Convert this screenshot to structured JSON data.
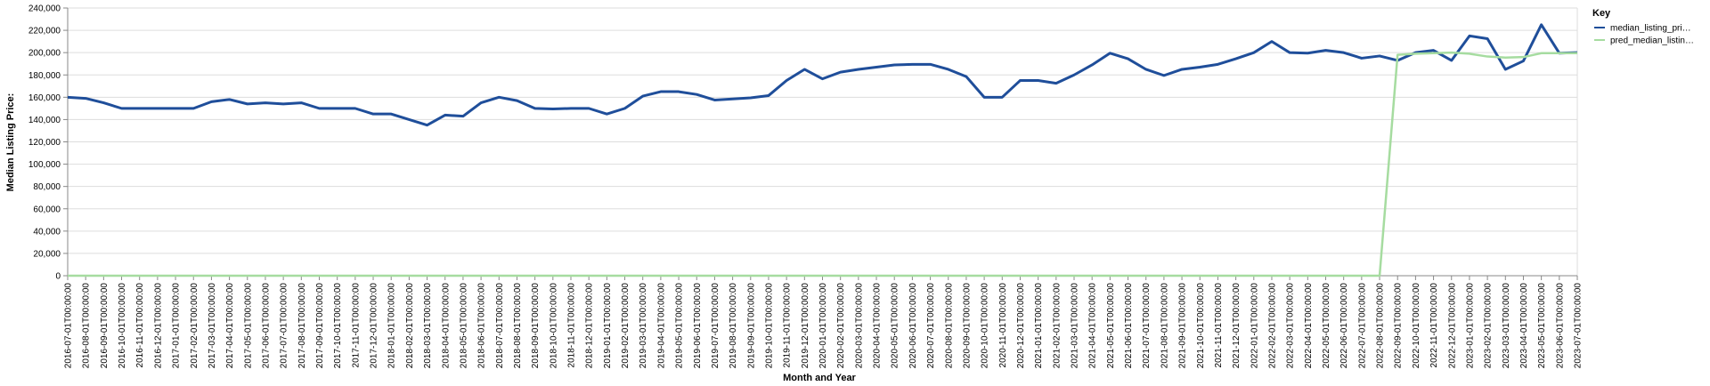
{
  "chart_data": {
    "type": "line",
    "title": "",
    "xlabel": "Month and Year",
    "ylabel": "Median Listing Price:",
    "ylim": [
      0,
      240000
    ],
    "y_ticks": [
      0,
      20000,
      40000,
      60000,
      80000,
      100000,
      120000,
      140000,
      160000,
      180000,
      200000,
      220000,
      240000
    ],
    "y_tick_labels": [
      "0",
      "20,000",
      "40,000",
      "60,000",
      "80,000",
      "100,000",
      "120,000",
      "140,000",
      "160,000",
      "180,000",
      "200,000",
      "220,000",
      "240,000"
    ],
    "grid": true,
    "legend_position": "right",
    "legend_title": "Key",
    "categories": [
      "2016-07-01T00:00:00",
      "2016-08-01T00:00:00",
      "2016-09-01T00:00:00",
      "2016-10-01T00:00:00",
      "2016-11-01T00:00:00",
      "2016-12-01T00:00:00",
      "2017-01-01T00:00:00",
      "2017-02-01T00:00:00",
      "2017-03-01T00:00:00",
      "2017-04-01T00:00:00",
      "2017-05-01T00:00:00",
      "2017-06-01T00:00:00",
      "2017-07-01T00:00:00",
      "2017-08-01T00:00:00",
      "2017-09-01T00:00:00",
      "2017-10-01T00:00:00",
      "2017-11-01T00:00:00",
      "2017-12-01T00:00:00",
      "2018-01-01T00:00:00",
      "2018-02-01T00:00:00",
      "2018-03-01T00:00:00",
      "2018-04-01T00:00:00",
      "2018-05-01T00:00:00",
      "2018-06-01T00:00:00",
      "2018-07-01T00:00:00",
      "2018-08-01T00:00:00",
      "2018-09-01T00:00:00",
      "2018-10-01T00:00:00",
      "2018-11-01T00:00:00",
      "2018-12-01T00:00:00",
      "2019-01-01T00:00:00",
      "2019-02-01T00:00:00",
      "2019-03-01T00:00:00",
      "2019-04-01T00:00:00",
      "2019-05-01T00:00:00",
      "2019-06-01T00:00:00",
      "2019-07-01T00:00:00",
      "2019-08-01T00:00:00",
      "2019-09-01T00:00:00",
      "2019-10-01T00:00:00",
      "2019-11-01T00:00:00",
      "2019-12-01T00:00:00",
      "2020-01-01T00:00:00",
      "2020-02-01T00:00:00",
      "2020-03-01T00:00:00",
      "2020-04-01T00:00:00",
      "2020-05-01T00:00:00",
      "2020-06-01T00:00:00",
      "2020-07-01T00:00:00",
      "2020-08-01T00:00:00",
      "2020-09-01T00:00:00",
      "2020-10-01T00:00:00",
      "2020-11-01T00:00:00",
      "2020-12-01T00:00:00",
      "2021-01-01T00:00:00",
      "2021-02-01T00:00:00",
      "2021-03-01T00:00:00",
      "2021-04-01T00:00:00",
      "2021-05-01T00:00:00",
      "2021-06-01T00:00:00",
      "2021-07-01T00:00:00",
      "2021-08-01T00:00:00",
      "2021-09-01T00:00:00",
      "2021-10-01T00:00:00",
      "2021-11-01T00:00:00",
      "2021-12-01T00:00:00",
      "2022-01-01T00:00:00",
      "2022-02-01T00:00:00",
      "2022-03-01T00:00:00",
      "2022-04-01T00:00:00",
      "2022-05-01T00:00:00",
      "2022-06-01T00:00:00",
      "2022-07-01T00:00:00",
      "2022-08-01T00:00:00",
      "2022-09-01T00:00:00",
      "2022-10-01T00:00:00",
      "2022-11-01T00:00:00",
      "2022-12-01T00:00:00",
      "2023-01-01T00:00:00",
      "2023-02-01T00:00:00",
      "2023-03-01T00:00:00",
      "2023-04-01T00:00:00",
      "2023-05-01T00:00:00",
      "2023-06-01T00:00:00",
      "2023-07-01T00:00:00"
    ],
    "series": [
      {
        "name": "median_listing_pri…",
        "color": "#1f4e9a",
        "values": [
          160000,
          159000,
          155000,
          150000,
          150000,
          150000,
          150000,
          150000,
          156000,
          158000,
          154000,
          155000,
          154000,
          155000,
          150000,
          150000,
          150000,
          145000,
          145000,
          140000,
          135000,
          144000,
          143000,
          155000,
          160000,
          157000,
          150000,
          149500,
          150000,
          150000,
          145000,
          150000,
          161000,
          165000,
          165000,
          162500,
          157500,
          158500,
          159500,
          161500,
          175000,
          185000,
          176500,
          182500,
          185000,
          187000,
          189000,
          189500,
          189500,
          185000,
          178500,
          160000,
          160000,
          175000,
          175000,
          172500,
          180000,
          189000,
          199500,
          194500,
          185000,
          179500,
          185000,
          187000,
          189500,
          194500,
          200000,
          210000,
          200000,
          199500,
          202000,
          200000,
          195000,
          197000,
          193000,
          200000,
          202000,
          193000,
          215000,
          212500,
          185000,
          192500,
          225000,
          199500,
          200000
        ]
      },
      {
        "name": "pred_median_listin…",
        "color": "#a6dca0",
        "values": [
          0,
          0,
          0,
          0,
          0,
          0,
          0,
          0,
          0,
          0,
          0,
          0,
          0,
          0,
          0,
          0,
          0,
          0,
          0,
          0,
          0,
          0,
          0,
          0,
          0,
          0,
          0,
          0,
          0,
          0,
          0,
          0,
          0,
          0,
          0,
          0,
          0,
          0,
          0,
          0,
          0,
          0,
          0,
          0,
          0,
          0,
          0,
          0,
          0,
          0,
          0,
          0,
          0,
          0,
          0,
          0,
          0,
          0,
          0,
          0,
          0,
          0,
          0,
          0,
          0,
          0,
          0,
          0,
          0,
          0,
          0,
          0,
          0,
          0,
          198000,
          199000,
          199500,
          200000,
          199000,
          196500,
          195500,
          196000,
          199500,
          199500,
          199500
        ]
      }
    ]
  }
}
